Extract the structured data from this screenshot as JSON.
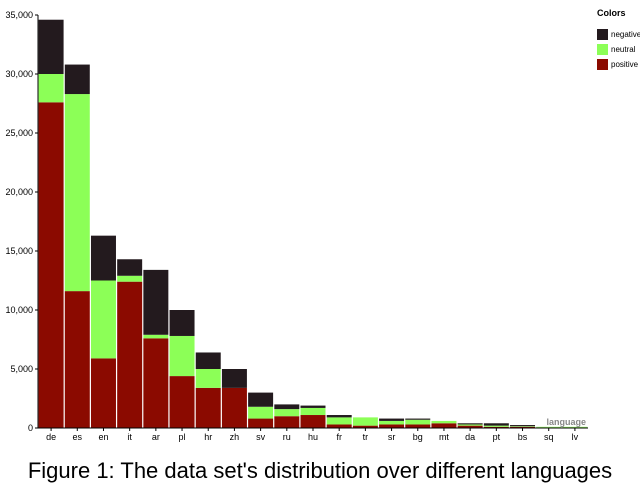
{
  "chart_data": {
    "type": "bar",
    "stacked": true,
    "title": "",
    "xlabel": "language",
    "ylabel": "",
    "ylim": [
      0,
      35000
    ],
    "yticks": [
      0,
      5000,
      10000,
      15000,
      20000,
      25000,
      30000,
      35000
    ],
    "ytick_labels": [
      "0",
      "5,000",
      "10,000",
      "15,000",
      "20,000",
      "25,000",
      "30,000",
      "35,000"
    ],
    "categories": [
      "de",
      "es",
      "en",
      "it",
      "ar",
      "pl",
      "hr",
      "zh",
      "sv",
      "ru",
      "hu",
      "fr",
      "tr",
      "sr",
      "bg",
      "mt",
      "da",
      "pt",
      "bs",
      "sq",
      "lv"
    ],
    "series": [
      {
        "name": "positive",
        "color": "#8b0a00",
        "values": [
          27600,
          11600,
          5900,
          12400,
          7600,
          4400,
          3400,
          3400,
          800,
          1000,
          1100,
          300,
          200,
          300,
          300,
          400,
          200,
          100,
          100,
          50,
          50
        ]
      },
      {
        "name": "neutral",
        "color": "#8cff57",
        "values": [
          2400,
          16700,
          6600,
          500,
          300,
          3400,
          1600,
          0,
          1000,
          600,
          600,
          600,
          700,
          300,
          400,
          200,
          100,
          100,
          50,
          50,
          50
        ]
      },
      {
        "name": "negative",
        "color": "#231a1e",
        "values": [
          4600,
          2500,
          3800,
          1400,
          5500,
          2200,
          1400,
          1600,
          1200,
          400,
          200,
          200,
          0,
          200,
          100,
          0,
          100,
          200,
          100,
          0,
          0
        ]
      }
    ],
    "legend": {
      "title": "Colors",
      "placement": "right",
      "order": [
        "negative",
        "neutral",
        "positive"
      ]
    },
    "grid": false
  },
  "caption": "Figure 1: The data set's distribution over different languages"
}
